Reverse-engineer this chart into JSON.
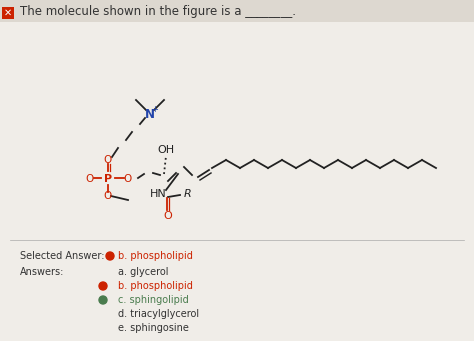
{
  "bg_color": "#f0ede8",
  "title_text": "The molecule shown in the figure is a ________.",
  "title_fontsize": 8.5,
  "title_color": "#333333",
  "selected_answer_label": "Selected Answer:",
  "selected_answer_value": "b. phospholipid",
  "answers_label": "Answers:",
  "answers": [
    {
      "letter": "a.",
      "text": "glycerol",
      "correct": false,
      "selected": false
    },
    {
      "letter": "b.",
      "text": "phospholipid",
      "correct": false,
      "selected": true
    },
    {
      "letter": "c.",
      "text": "sphingolipid",
      "correct": true,
      "selected": false
    },
    {
      "letter": "d.",
      "text": "triacylglycerol",
      "correct": false,
      "selected": false
    },
    {
      "letter": "e.",
      "text": "sphingosine",
      "correct": false,
      "selected": false
    }
  ],
  "correct_color": "#4a7c4e",
  "selected_wrong_color": "#cc2200",
  "normal_color": "#333333",
  "dot_correct": "#4a7c4e",
  "dot_selected_wrong": "#cc2200"
}
